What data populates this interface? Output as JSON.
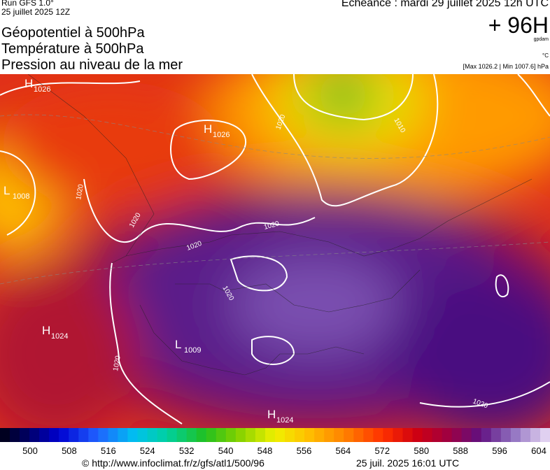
{
  "header": {
    "run": "Run GFS 1.0°",
    "run_date": "25 juillet 2025 12Z",
    "titles": [
      "Géopotentiel à 500hPa",
      "Température à 500hPa",
      "Pression au niveau de la mer"
    ],
    "valid": "Echéance : mardi 29 juillet 2025 12h UTC",
    "lead": "+ 96H",
    "unit": "gpdam",
    "temp_unit": "°C",
    "pressure_range": "[Max 1026.2 | Min 1007.6] hPa"
  },
  "map": {
    "centers": [
      {
        "kind": "H",
        "value": 1026
      },
      {
        "kind": "H",
        "value": 1026
      },
      {
        "kind": "L",
        "value": 1008
      },
      {
        "kind": "H",
        "value": 1024
      },
      {
        "kind": "L",
        "value": 1009
      },
      {
        "kind": "H",
        "value": 1024
      }
    ],
    "isobar_labels": [
      1020,
      1020,
      1020,
      1020,
      1020,
      1020,
      1020,
      1020,
      1010
    ]
  },
  "colorbar": {
    "ticks": [
      500,
      508,
      516,
      524,
      532,
      540,
      548,
      556,
      564,
      572,
      580,
      588,
      596,
      604
    ]
  },
  "footer": {
    "source": "© http://www.infoclimat.fr/z/gfs/atl1/500/96",
    "stamp": "25 juil. 2025 16:01 UTC"
  }
}
